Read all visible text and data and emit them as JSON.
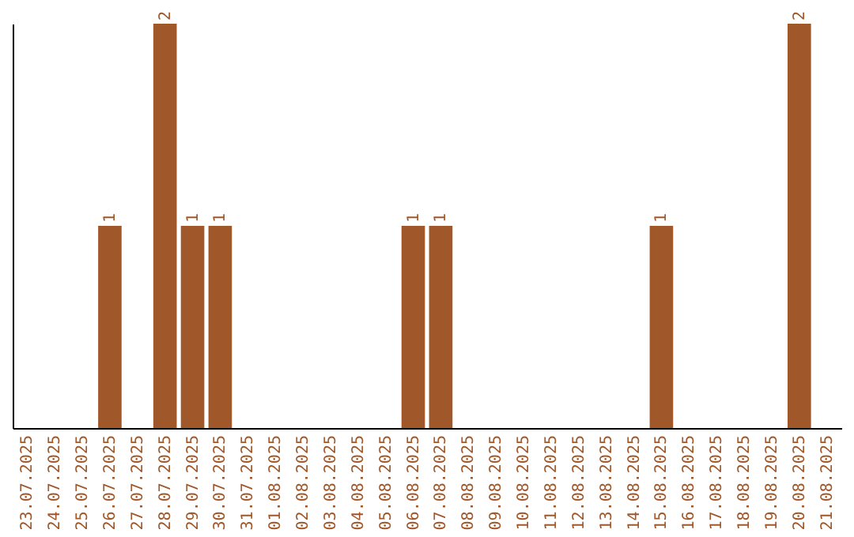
{
  "chart_data": {
    "type": "bar",
    "categories": [
      "23.07.2025",
      "24.07.2025",
      "25.07.2025",
      "26.07.2025",
      "27.07.2025",
      "28.07.2025",
      "29.07.2025",
      "30.07.2025",
      "31.07.2025",
      "01.08.2025",
      "02.08.2025",
      "03.08.2025",
      "04.08.2025",
      "05.08.2025",
      "06.08.2025",
      "07.08.2025",
      "08.08.2025",
      "09.08.2025",
      "10.08.2025",
      "11.08.2025",
      "12.08.2025",
      "13.08.2025",
      "14.08.2025",
      "15.08.2025",
      "16.08.2025",
      "17.08.2025",
      "18.08.2025",
      "19.08.2025",
      "20.08.2025",
      "21.08.2025"
    ],
    "values": [
      0,
      0,
      0,
      1,
      0,
      2,
      1,
      1,
      0,
      0,
      0,
      0,
      0,
      0,
      1,
      1,
      0,
      0,
      0,
      0,
      0,
      0,
      0,
      1,
      0,
      0,
      0,
      0,
      2,
      0
    ],
    "value_labels": [
      null,
      null,
      null,
      "1",
      null,
      "2",
      "1",
      "1",
      null,
      null,
      null,
      null,
      null,
      null,
      "1",
      "1",
      null,
      null,
      null,
      null,
      null,
      null,
      null,
      "1",
      null,
      null,
      null,
      null,
      "2",
      null
    ],
    "color": "#a0582a",
    "ylim": [
      0,
      2
    ],
    "tick_labels": "x",
    "grid": false
  }
}
